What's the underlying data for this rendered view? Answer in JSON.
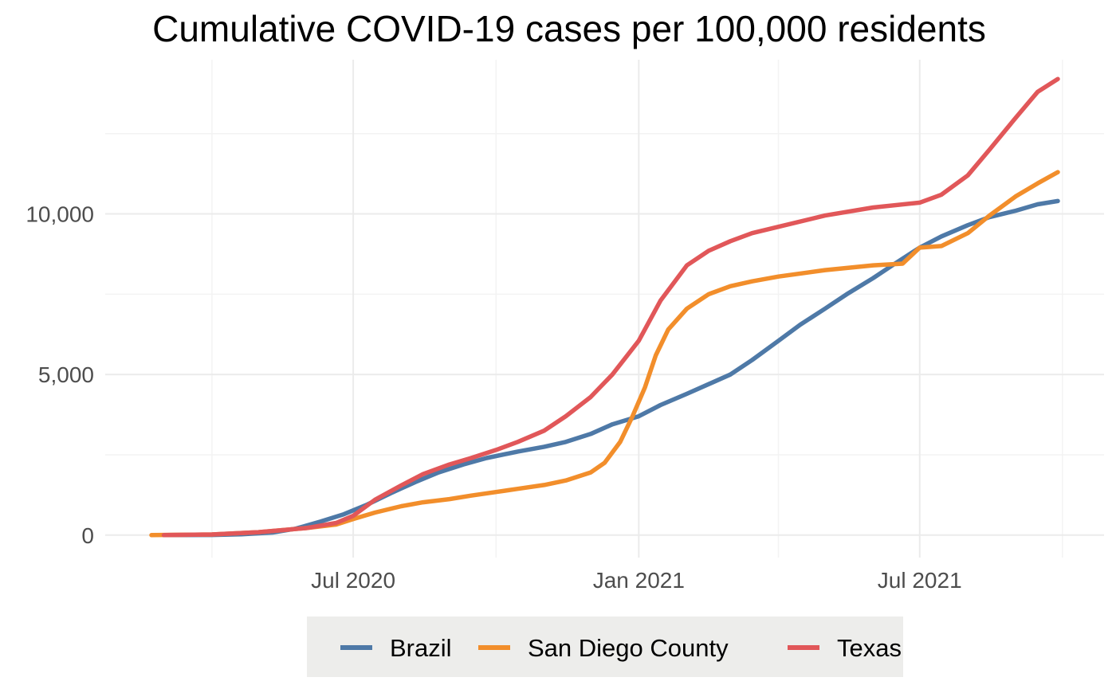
{
  "chart_data": {
    "type": "line",
    "title": "Cumulative COVID-19 cases per 100,000 residents",
    "xlabel": "",
    "ylabel": "",
    "x_range": [
      "2020-02-22",
      "2021-09-28"
    ],
    "x_ticks": [
      {
        "date": "2020-07-01",
        "label": "Jul 2020"
      },
      {
        "date": "2021-01-01",
        "label": "Jan 2021"
      },
      {
        "date": "2021-07-01",
        "label": "Jul 2021"
      }
    ],
    "x_minor_ticks": [
      "2020-04-01",
      "2020-10-01",
      "2021-04-01",
      "2021-10-01"
    ],
    "ylim": [
      -700,
      14800
    ],
    "y_ticks": [
      {
        "value": 0,
        "label": "0"
      },
      {
        "value": 5000,
        "label": "5,000"
      },
      {
        "value": 10000,
        "label": "10,000"
      }
    ],
    "y_minor_ticks": [
      2500,
      7500,
      12500
    ],
    "grid": true,
    "legend_position": "bottom",
    "series": [
      {
        "name": "Brazil",
        "color": "#4E79A7",
        "points": [
          [
            "2020-03-01",
            0
          ],
          [
            "2020-04-01",
            5
          ],
          [
            "2020-04-20",
            25
          ],
          [
            "2020-05-10",
            80
          ],
          [
            "2020-05-25",
            200
          ],
          [
            "2020-06-10",
            420
          ],
          [
            "2020-06-25",
            650
          ],
          [
            "2020-07-10",
            950
          ],
          [
            "2020-07-25",
            1300
          ],
          [
            "2020-08-10",
            1650
          ],
          [
            "2020-08-25",
            1950
          ],
          [
            "2020-09-10",
            2200
          ],
          [
            "2020-09-25",
            2400
          ],
          [
            "2020-10-15",
            2600
          ],
          [
            "2020-11-01",
            2750
          ],
          [
            "2020-11-15",
            2900
          ],
          [
            "2020-12-01",
            3150
          ],
          [
            "2020-12-15",
            3450
          ],
          [
            "2021-01-01",
            3700
          ],
          [
            "2021-01-15",
            4050
          ],
          [
            "2021-02-01",
            4400
          ],
          [
            "2021-02-15",
            4700
          ],
          [
            "2021-03-01",
            5000
          ],
          [
            "2021-03-15",
            5450
          ],
          [
            "2021-04-01",
            6050
          ],
          [
            "2021-04-15",
            6550
          ],
          [
            "2021-05-01",
            7050
          ],
          [
            "2021-05-15",
            7500
          ],
          [
            "2021-06-01",
            8000
          ],
          [
            "2021-06-15",
            8450
          ],
          [
            "2021-07-01",
            8950
          ],
          [
            "2021-07-15",
            9300
          ],
          [
            "2021-08-01",
            9650
          ],
          [
            "2021-08-15",
            9900
          ],
          [
            "2021-09-01",
            10100
          ],
          [
            "2021-09-15",
            10300
          ],
          [
            "2021-09-28",
            10400
          ]
        ]
      },
      {
        "name": "San Diego County",
        "color": "#F28E2B",
        "points": [
          [
            "2020-02-22",
            0
          ],
          [
            "2020-04-01",
            20
          ],
          [
            "2020-05-01",
            90
          ],
          [
            "2020-06-01",
            220
          ],
          [
            "2020-06-20",
            330
          ],
          [
            "2020-07-01",
            500
          ],
          [
            "2020-07-15",
            700
          ],
          [
            "2020-08-01",
            900
          ],
          [
            "2020-08-15",
            1020
          ],
          [
            "2020-09-01",
            1120
          ],
          [
            "2020-09-15",
            1230
          ],
          [
            "2020-10-01",
            1340
          ],
          [
            "2020-10-15",
            1440
          ],
          [
            "2020-11-01",
            1560
          ],
          [
            "2020-11-15",
            1700
          ],
          [
            "2020-12-01",
            1950
          ],
          [
            "2020-12-10",
            2250
          ],
          [
            "2020-12-20",
            2900
          ],
          [
            "2020-12-28",
            3700
          ],
          [
            "2021-01-05",
            4600
          ],
          [
            "2021-01-12",
            5600
          ],
          [
            "2021-01-20",
            6400
          ],
          [
            "2021-02-01",
            7050
          ],
          [
            "2021-02-15",
            7500
          ],
          [
            "2021-03-01",
            7750
          ],
          [
            "2021-03-15",
            7900
          ],
          [
            "2021-04-01",
            8050
          ],
          [
            "2021-05-01",
            8250
          ],
          [
            "2021-06-01",
            8400
          ],
          [
            "2021-06-20",
            8450
          ],
          [
            "2021-07-01",
            8950
          ],
          [
            "2021-07-15",
            9000
          ],
          [
            "2021-08-01",
            9400
          ],
          [
            "2021-08-15",
            9950
          ],
          [
            "2021-09-01",
            10550
          ],
          [
            "2021-09-15",
            10950
          ],
          [
            "2021-09-28",
            11300
          ]
        ]
      },
      {
        "name": "Texas",
        "color": "#E15759",
        "points": [
          [
            "2020-03-01",
            0
          ],
          [
            "2020-04-01",
            20
          ],
          [
            "2020-05-01",
            90
          ],
          [
            "2020-06-01",
            220
          ],
          [
            "2020-06-20",
            380
          ],
          [
            "2020-07-01",
            600
          ],
          [
            "2020-07-15",
            1100
          ],
          [
            "2020-08-01",
            1550
          ],
          [
            "2020-08-15",
            1900
          ],
          [
            "2020-09-01",
            2200
          ],
          [
            "2020-09-15",
            2400
          ],
          [
            "2020-10-01",
            2650
          ],
          [
            "2020-10-15",
            2900
          ],
          [
            "2020-11-01",
            3250
          ],
          [
            "2020-11-15",
            3700
          ],
          [
            "2020-12-01",
            4300
          ],
          [
            "2020-12-15",
            5000
          ],
          [
            "2021-01-01",
            6050
          ],
          [
            "2021-01-15",
            7300
          ],
          [
            "2021-02-01",
            8400
          ],
          [
            "2021-02-15",
            8850
          ],
          [
            "2021-03-01",
            9150
          ],
          [
            "2021-03-15",
            9400
          ],
          [
            "2021-04-01",
            9600
          ],
          [
            "2021-05-01",
            9950
          ],
          [
            "2021-06-01",
            10200
          ],
          [
            "2021-07-01",
            10350
          ],
          [
            "2021-07-15",
            10600
          ],
          [
            "2021-08-01",
            11200
          ],
          [
            "2021-08-15",
            12000
          ],
          [
            "2021-09-01",
            13000
          ],
          [
            "2021-09-15",
            13800
          ],
          [
            "2021-09-28",
            14200
          ]
        ]
      }
    ]
  }
}
